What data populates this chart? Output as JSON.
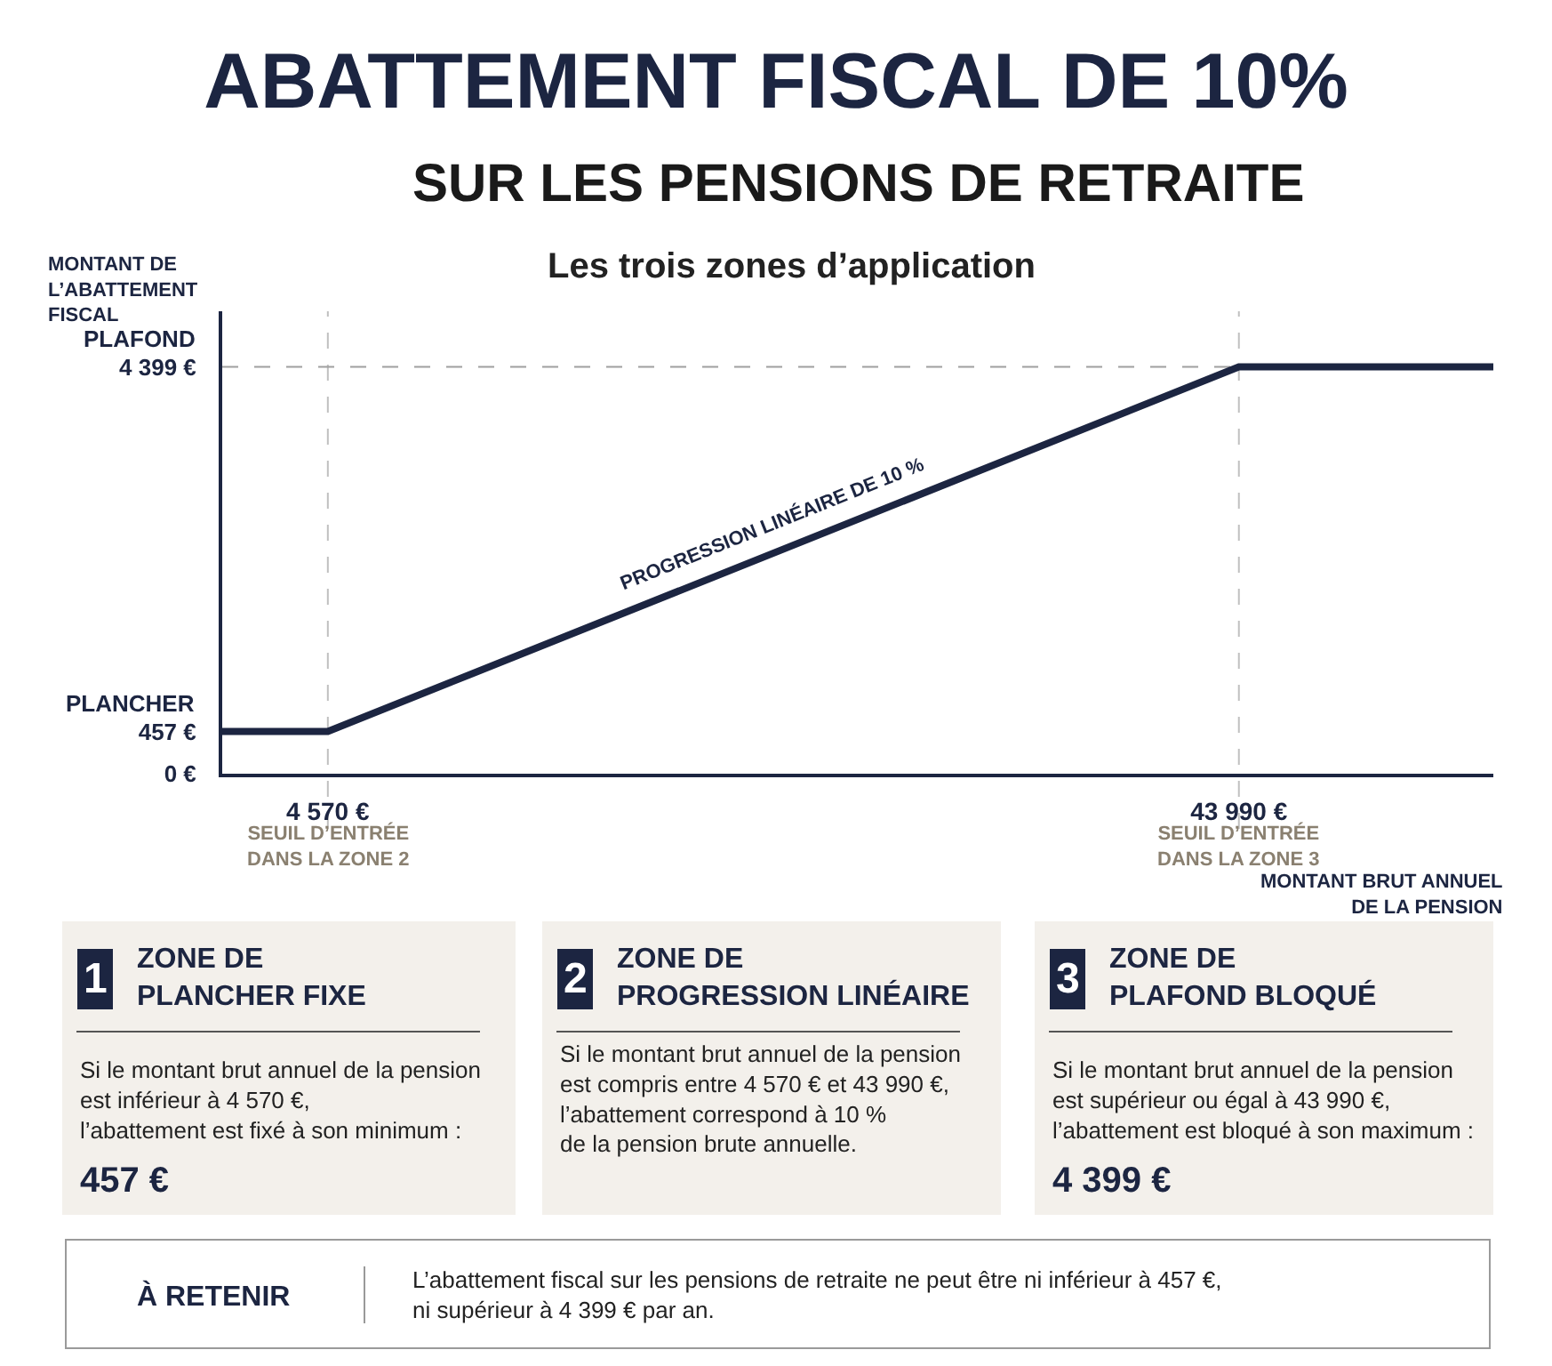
{
  "chart_data": {
    "type": "line",
    "title": "ABATTEMENT FISCAL DE 10%",
    "subtitle": "SUR LES PENSIONS DE RETRAITE",
    "xlabel": "MONTANT BRUT ANNUEL\nDE LA PENSION",
    "ylabel": "MONTANT DE\nL’ABATTEMENT\nFISCAL",
    "x": [
      0,
      4570,
      43990,
      55000
    ],
    "series": [
      {
        "color": "#1c2541",
        "values": [
          457,
          457,
          4399,
          4399
        ]
      }
    ],
    "xlim": [
      0,
      55000
    ],
    "ylim": [
      0,
      5000
    ],
    "xticks": [
      {
        "value": 4570,
        "label": "4 570 €"
      },
      {
        "value": 43990,
        "label": "43 990 €"
      }
    ],
    "yticks": [
      {
        "value": 0,
        "label": "0 €"
      },
      {
        "value": 457,
        "label": "457 €"
      },
      {
        "value": 4399,
        "label": "4 399 €"
      }
    ],
    "ref_lines": [
      {
        "axis": "x",
        "value": 4570,
        "label": "SEUIL D’ENTRÉE\nDANS LA ZONE 2",
        "color": "#c0c0c0",
        "line_style": "dashed"
      },
      {
        "axis": "x",
        "value": 43990,
        "label": "SEUIL D’ENTRÉE\nDANS LA ZONE 3",
        "color": "#c0c0c0",
        "line_style": "dashed"
      },
      {
        "axis": "y",
        "value": 4399,
        "color": "#a0a0a0",
        "line_style": "dashed"
      }
    ],
    "grid": false,
    "marker": "none",
    "line_style": "solid",
    "annotations": [
      "Les trois zones d’application",
      {
        "text": "PROGRESSION LINÉAIRE DE 10 %",
        "x": 24280,
        "y": 2428
      },
      "PLANCHER",
      "PLAFOND",
      "1",
      "ZONE DE\nPLANCHER FIXE",
      "Si le montant brut annuel de la pension\nest inférieur à 4 570 €,\nl’abattement est fixé à son minimum :",
      "457 €",
      "2",
      "ZONE DE\nPROGRESSION LINÉAIRE",
      "Si le montant brut annuel de la pension\nest compris entre 4 570 € et 43 990 €,\nl’abattement correspond à 10 %\nde la pension brute annuelle.",
      "3",
      "ZONE DE\nPLAFOND BLOQUÉ",
      "Si le montant brut annuel de la pension\nest supérieur ou égal à 43 990 €,\nl’abattement est bloqué à son maximum :",
      "4 399 €",
      "À RETENIR",
      "L’abattement fiscal sur les pensions de retraite ne peut être ni inférieur à 457 €,\nni supérieur à 4 399 € par an."
    ]
  }
}
